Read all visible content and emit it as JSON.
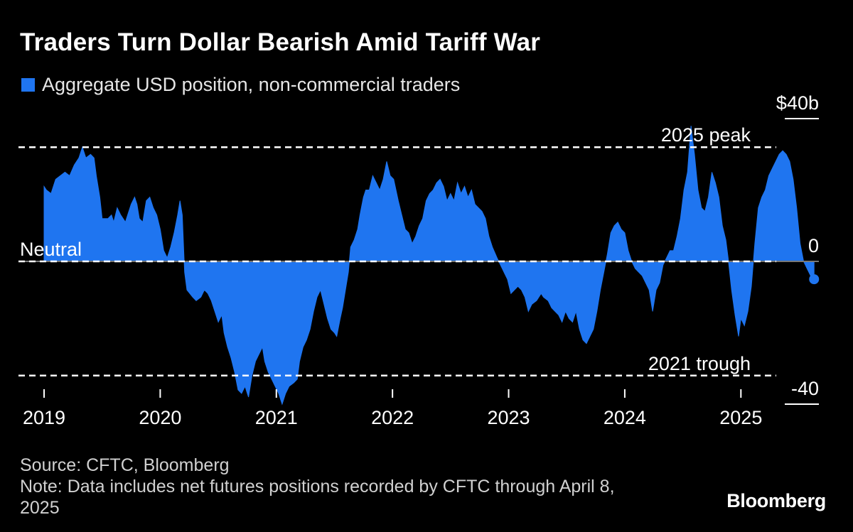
{
  "title": "Traders Turn Dollar Bearish Amid Tariff War",
  "legend": {
    "label": "Aggregate USD position, non-commercial traders",
    "color": "#1f75f0"
  },
  "source": "Source: CFTC, Bloomberg",
  "note": "Note: Data includes net futures positions recorded by CFTC through April 8, 2025",
  "brand": "Bloomberg",
  "chart_data": {
    "type": "area",
    "ylim": [
      -40,
      40
    ],
    "xlim": [
      2019.0,
      2025.5
    ],
    "y_tick_labels": [
      {
        "value": 40,
        "label": "$40b"
      },
      {
        "value": 0,
        "label": "0"
      },
      {
        "value": -40,
        "label": "-40"
      }
    ],
    "x_tick_labels": [
      "2019",
      "2020",
      "2021",
      "2022",
      "2023",
      "2024",
      "2025"
    ],
    "annotations": [
      {
        "label": "2025 peak",
        "value": 32
      },
      {
        "label": "Neutral",
        "value": 0
      },
      {
        "label": "2021 trough",
        "value": -32
      }
    ],
    "series": [
      {
        "color": "#1f75f0",
        "points": [
          [
            2019.0,
            21
          ],
          [
            2019.02,
            20
          ],
          [
            2019.06,
            19
          ],
          [
            2019.1,
            23
          ],
          [
            2019.14,
            24
          ],
          [
            2019.18,
            25
          ],
          [
            2019.22,
            24
          ],
          [
            2019.26,
            27
          ],
          [
            2019.3,
            29
          ],
          [
            2019.33,
            32
          ],
          [
            2019.36,
            29
          ],
          [
            2019.4,
            30
          ],
          [
            2019.43,
            29
          ],
          [
            2019.45,
            24
          ],
          [
            2019.48,
            18
          ],
          [
            2019.5,
            12
          ],
          [
            2019.55,
            12
          ],
          [
            2019.58,
            13
          ],
          [
            2019.6,
            11
          ],
          [
            2019.63,
            15
          ],
          [
            2019.66,
            13
          ],
          [
            2019.7,
            11
          ],
          [
            2019.72,
            13
          ],
          [
            2019.75,
            16
          ],
          [
            2019.78,
            18
          ],
          [
            2019.8,
            16
          ],
          [
            2019.82,
            12
          ],
          [
            2019.85,
            11
          ],
          [
            2019.88,
            17
          ],
          [
            2019.91,
            18
          ],
          [
            2019.94,
            15
          ],
          [
            2019.97,
            13
          ],
          [
            2020.0,
            9
          ],
          [
            2020.03,
            3
          ],
          [
            2020.06,
            1
          ],
          [
            2020.09,
            4
          ],
          [
            2020.12,
            8
          ],
          [
            2020.15,
            13
          ],
          [
            2020.17,
            17
          ],
          [
            2020.19,
            13
          ],
          [
            2020.21,
            -3
          ],
          [
            2020.23,
            -8
          ],
          [
            2020.28,
            -10
          ],
          [
            2020.31,
            -11
          ],
          [
            2020.35,
            -10
          ],
          [
            2020.38,
            -8
          ],
          [
            2020.41,
            -9
          ],
          [
            2020.44,
            -11
          ],
          [
            2020.47,
            -14
          ],
          [
            2020.5,
            -17
          ],
          [
            2020.53,
            -15
          ],
          [
            2020.55,
            -20
          ],
          [
            2020.58,
            -24
          ],
          [
            2020.61,
            -27
          ],
          [
            2020.64,
            -31
          ],
          [
            2020.67,
            -36
          ],
          [
            2020.7,
            -37
          ],
          [
            2020.73,
            -35
          ],
          [
            2020.76,
            -38
          ],
          [
            2020.79,
            -32
          ],
          [
            2020.82,
            -28
          ],
          [
            2020.85,
            -26
          ],
          [
            2020.88,
            -24
          ],
          [
            2020.9,
            -28
          ],
          [
            2020.93,
            -31
          ],
          [
            2020.96,
            -33
          ],
          [
            2020.99,
            -35
          ],
          [
            2021.02,
            -37
          ],
          [
            2021.05,
            -40
          ],
          [
            2021.08,
            -37
          ],
          [
            2021.11,
            -35
          ],
          [
            2021.15,
            -34
          ],
          [
            2021.18,
            -33
          ],
          [
            2021.2,
            -28
          ],
          [
            2021.23,
            -24
          ],
          [
            2021.26,
            -22
          ],
          [
            2021.29,
            -19
          ],
          [
            2021.32,
            -14
          ],
          [
            2021.35,
            -10
          ],
          [
            2021.38,
            -8
          ],
          [
            2021.41,
            -12
          ],
          [
            2021.44,
            -16
          ],
          [
            2021.47,
            -19
          ],
          [
            2021.5,
            -20
          ],
          [
            2021.52,
            -21
          ],
          [
            2021.55,
            -16
          ],
          [
            2021.57,
            -13
          ],
          [
            2021.6,
            -7
          ],
          [
            2021.62,
            -3
          ],
          [
            2021.64,
            4
          ],
          [
            2021.67,
            6
          ],
          [
            2021.7,
            9
          ],
          [
            2021.72,
            13
          ],
          [
            2021.75,
            18
          ],
          [
            2021.77,
            20
          ],
          [
            2021.8,
            20
          ],
          [
            2021.83,
            24
          ],
          [
            2021.86,
            22
          ],
          [
            2021.89,
            20
          ],
          [
            2021.92,
            23
          ],
          [
            2021.95,
            28
          ],
          [
            2021.98,
            24
          ],
          [
            2022.01,
            23
          ],
          [
            2022.05,
            17
          ],
          [
            2022.08,
            13
          ],
          [
            2022.11,
            9
          ],
          [
            2022.14,
            8
          ],
          [
            2022.17,
            5
          ],
          [
            2022.2,
            7
          ],
          [
            2022.23,
            10
          ],
          [
            2022.26,
            12
          ],
          [
            2022.29,
            17
          ],
          [
            2022.32,
            19
          ],
          [
            2022.35,
            20
          ],
          [
            2022.38,
            22
          ],
          [
            2022.41,
            23
          ],
          [
            2022.44,
            21
          ],
          [
            2022.47,
            17
          ],
          [
            2022.5,
            19
          ],
          [
            2022.53,
            17
          ],
          [
            2022.56,
            22
          ],
          [
            2022.59,
            19
          ],
          [
            2022.62,
            21
          ],
          [
            2022.65,
            18
          ],
          [
            2022.68,
            20
          ],
          [
            2022.71,
            16
          ],
          [
            2022.74,
            15
          ],
          [
            2022.77,
            14
          ],
          [
            2022.8,
            12
          ],
          [
            2022.83,
            7
          ],
          [
            2022.86,
            4
          ],
          [
            2022.9,
            1
          ],
          [
            2022.93,
            -1
          ],
          [
            2022.96,
            -3
          ],
          [
            2022.99,
            -5
          ],
          [
            2023.02,
            -9
          ],
          [
            2023.05,
            -8
          ],
          [
            2023.08,
            -7
          ],
          [
            2023.11,
            -8
          ],
          [
            2023.14,
            -10
          ],
          [
            2023.17,
            -14
          ],
          [
            2023.2,
            -12
          ],
          [
            2023.24,
            -11
          ],
          [
            2023.28,
            -9
          ],
          [
            2023.3,
            -10
          ],
          [
            2023.34,
            -11
          ],
          [
            2023.37,
            -13
          ],
          [
            2023.4,
            -14
          ],
          [
            2023.43,
            -15
          ],
          [
            2023.46,
            -17
          ],
          [
            2023.49,
            -14
          ],
          [
            2023.52,
            -16
          ],
          [
            2023.55,
            -17
          ],
          [
            2023.58,
            -14
          ],
          [
            2023.61,
            -19
          ],
          [
            2023.64,
            -22
          ],
          [
            2023.67,
            -23
          ],
          [
            2023.7,
            -21
          ],
          [
            2023.73,
            -19
          ],
          [
            2023.76,
            -14
          ],
          [
            2023.79,
            -8
          ],
          [
            2023.82,
            -3
          ],
          [
            2023.85,
            2
          ],
          [
            2023.88,
            8
          ],
          [
            2023.91,
            10
          ],
          [
            2023.94,
            11
          ],
          [
            2023.97,
            9
          ],
          [
            2024.0,
            8
          ],
          [
            2024.03,
            3
          ],
          [
            2024.06,
            0
          ],
          [
            2024.09,
            -2
          ],
          [
            2024.12,
            -3
          ],
          [
            2024.15,
            -4
          ],
          [
            2024.18,
            -6
          ],
          [
            2024.21,
            -8
          ],
          [
            2024.24,
            -14
          ],
          [
            2024.27,
            -8
          ],
          [
            2024.3,
            -6
          ],
          [
            2024.33,
            -1
          ],
          [
            2024.36,
            1
          ],
          [
            2024.39,
            3
          ],
          [
            2024.42,
            3
          ],
          [
            2024.45,
            7
          ],
          [
            2024.48,
            12
          ],
          [
            2024.51,
            20
          ],
          [
            2024.54,
            25
          ],
          [
            2024.57,
            38
          ],
          [
            2024.6,
            30
          ],
          [
            2024.63,
            20
          ],
          [
            2024.66,
            15
          ],
          [
            2024.69,
            14
          ],
          [
            2024.72,
            18
          ],
          [
            2024.75,
            25
          ],
          [
            2024.78,
            22
          ],
          [
            2024.81,
            18
          ],
          [
            2024.84,
            10
          ],
          [
            2024.87,
            6
          ],
          [
            2024.89,
            1
          ],
          [
            2024.92,
            -8
          ],
          [
            2024.95,
            -15
          ],
          [
            2024.98,
            -21
          ],
          [
            2025.0,
            -16
          ],
          [
            2025.03,
            -18
          ],
          [
            2025.06,
            -14
          ],
          [
            2025.09,
            -7
          ],
          [
            2025.12,
            5
          ],
          [
            2025.15,
            15
          ],
          [
            2025.18,
            18
          ],
          [
            2025.21,
            20
          ],
          [
            2025.24,
            24
          ],
          [
            2025.27,
            26
          ],
          [
            2025.3,
            28
          ],
          [
            2025.33,
            30
          ],
          [
            2025.36,
            31
          ],
          [
            2025.39,
            30
          ],
          [
            2025.42,
            28
          ],
          [
            2025.45,
            23
          ],
          [
            2025.48,
            15
          ],
          [
            2025.51,
            5
          ],
          [
            2025.54,
            0
          ],
          [
            2025.57,
            -2
          ],
          [
            2025.6,
            -4
          ],
          [
            2025.63,
            -5
          ]
        ]
      }
    ],
    "last_point": [
      2025.63,
      -5
    ]
  }
}
